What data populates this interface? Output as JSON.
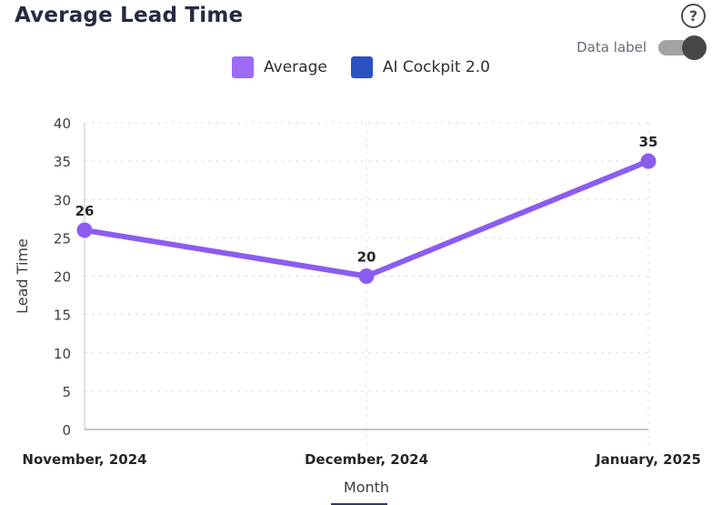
{
  "header": {
    "title": "Average Lead Time",
    "help_glyph": "?",
    "data_label": {
      "label": "Data label",
      "state": "on"
    }
  },
  "legend": {
    "items": [
      {
        "label": "Average",
        "color": "#9C6AF5"
      },
      {
        "label": "AI Cockpit 2.0",
        "color": "#2B52C2"
      }
    ]
  },
  "chart_data": {
    "type": "line",
    "title": "Average Lead Time",
    "x": [
      "November, 2024",
      "December, 2024",
      "January, 2025"
    ],
    "xlabel": "Month",
    "ylabel": "Lead Time",
    "ylim": [
      0,
      40
    ],
    "ytick_step": 5,
    "yticks": [
      0,
      5,
      10,
      15,
      20,
      25,
      30,
      35,
      40
    ],
    "grid": true,
    "legend_position": "top",
    "data_labels_visible": true,
    "series": [
      {
        "name": "Average",
        "color": "#8B5CF0",
        "values": [
          26,
          20,
          35
        ],
        "data_labels": [
          "26",
          "20",
          "35"
        ]
      },
      {
        "name": "AI Cockpit 2.0",
        "color": "#2B52C2",
        "values": []
      }
    ]
  },
  "colors": {
    "title_text": "#252B42",
    "axis_text": "#3F3F3F",
    "x_tick_text": "#262626",
    "grid_line": "#DEDEDE",
    "y_axis_line": "#D8D8D8",
    "x_axis_line": "#A8A8A8",
    "help_icon": "#4D4D4D",
    "data_label_text": "#666B76",
    "toggle_track": "#A3A3A3",
    "toggle_knob": "#474747"
  }
}
